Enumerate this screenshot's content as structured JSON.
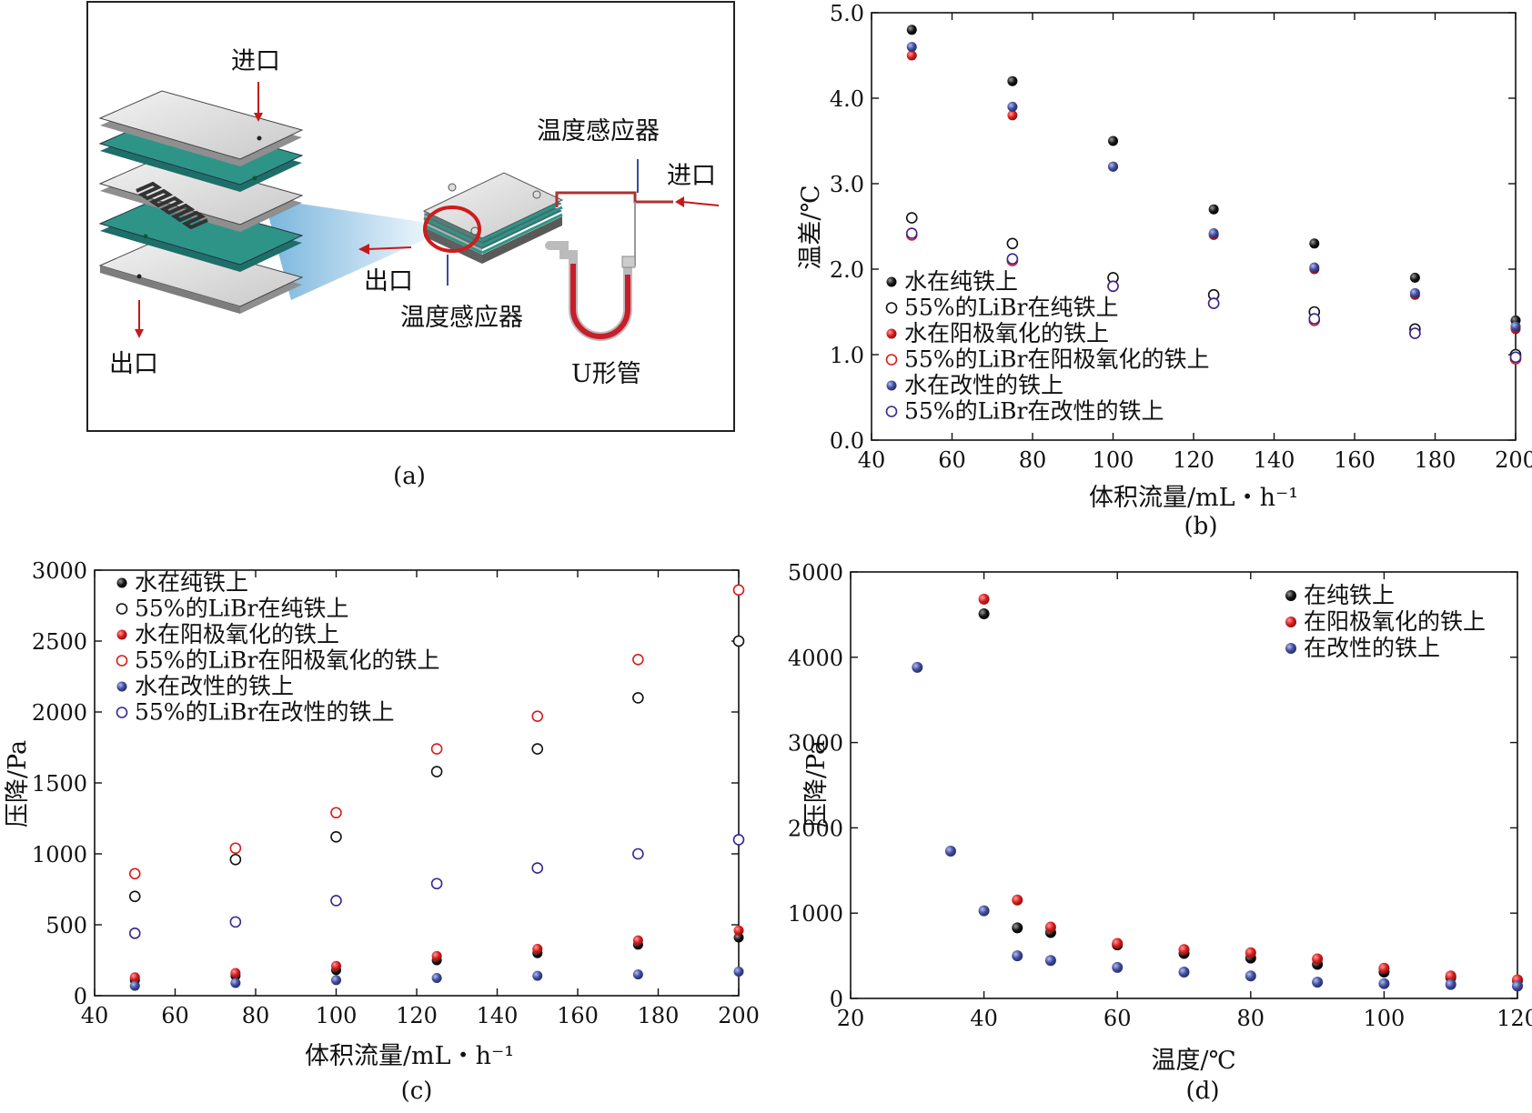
{
  "panel_a": {
    "label": "(a)",
    "inlet_top": "进口",
    "outlet_bottom": "出口",
    "sensor_top": "温度感应器",
    "inlet_right": "进口",
    "outlet_left": "出口",
    "sensor_bottom": "温度感应器",
    "u_tube": "U形管"
  },
  "chart_data": [
    {
      "id": "b",
      "type": "scatter",
      "panel_label": "(b)",
      "xlabel": "体积流量/mL・h⁻¹",
      "ylabel": "温差/℃",
      "xlim": [
        40,
        200
      ],
      "ylim": [
        0,
        5
      ],
      "xticks": [
        "40",
        "60",
        "80",
        "100",
        "120",
        "140",
        "160",
        "180",
        "200"
      ],
      "yticks": [
        "0.0",
        "1.0",
        "2.0",
        "3.0",
        "4.0",
        "5.0"
      ],
      "legend_position": "bottom-left",
      "series": [
        {
          "name": "水在纯铁上",
          "style": "filled",
          "color": "#111111",
          "x": [
            50,
            75,
            100,
            125,
            150,
            175,
            200
          ],
          "y": [
            4.8,
            4.2,
            3.5,
            2.7,
            2.3,
            1.9,
            1.4
          ]
        },
        {
          "name": "55%的LiBr在纯铁上",
          "style": "open",
          "color": "#111111",
          "x": [
            50,
            75,
            100,
            125,
            150,
            175,
            200
          ],
          "y": [
            2.6,
            2.3,
            1.9,
            1.7,
            1.5,
            1.3,
            1.0
          ]
        },
        {
          "name": "水在阳极氧化的铁上",
          "style": "filled",
          "color": "#d81c1c",
          "x": [
            50,
            75,
            100,
            125,
            150,
            175,
            200
          ],
          "y": [
            4.5,
            3.8,
            3.2,
            2.4,
            2.0,
            1.7,
            1.3
          ]
        },
        {
          "name": "55%的LiBr在阳极氧化的铁上",
          "style": "open",
          "color": "#d81c1c",
          "x": [
            50,
            75,
            100,
            125,
            150,
            175,
            200
          ],
          "y": [
            2.4,
            2.1,
            1.8,
            1.6,
            1.4,
            1.25,
            0.95
          ]
        },
        {
          "name": "水在改性的铁上",
          "style": "filled",
          "color": "#3f4c9b",
          "x": [
            50,
            75,
            100,
            125,
            150,
            175,
            200
          ],
          "y": [
            4.6,
            3.9,
            3.2,
            2.42,
            2.02,
            1.72,
            1.33
          ]
        },
        {
          "name": "55%的LiBr在改性的铁上",
          "style": "open",
          "color": "#3a2590",
          "x": [
            50,
            75,
            100,
            125,
            150,
            175,
            200
          ],
          "y": [
            2.42,
            2.12,
            1.8,
            1.6,
            1.42,
            1.25,
            0.97
          ]
        }
      ]
    },
    {
      "id": "c",
      "type": "scatter",
      "panel_label": "(c)",
      "xlabel": "体积流量/mL・h⁻¹",
      "ylabel": "压降/Pa",
      "xlim": [
        40,
        200
      ],
      "ylim": [
        0,
        3000
      ],
      "xticks": [
        "40",
        "60",
        "80",
        "100",
        "120",
        "140",
        "160",
        "180",
        "200"
      ],
      "yticks": [
        "0",
        "500",
        "1000",
        "1500",
        "2000",
        "2500",
        "3000"
      ],
      "legend_position": "top-left",
      "series": [
        {
          "name": "水在纯铁上",
          "style": "filled",
          "color": "#111111",
          "x": [
            50,
            75,
            100,
            125,
            150,
            175,
            200
          ],
          "y": [
            110,
            140,
            180,
            250,
            300,
            360,
            410
          ]
        },
        {
          "name": "55%的LiBr在纯铁上",
          "style": "open",
          "color": "#111111",
          "x": [
            50,
            75,
            100,
            125,
            150,
            175,
            200
          ],
          "y": [
            700,
            960,
            1120,
            1580,
            1740,
            2100,
            2500
          ]
        },
        {
          "name": "水在阳极氧化的铁上",
          "style": "filled",
          "color": "#d81c1c",
          "x": [
            50,
            75,
            100,
            125,
            150,
            175,
            200
          ],
          "y": [
            130,
            160,
            210,
            280,
            330,
            390,
            460
          ]
        },
        {
          "name": "55%的LiBr在阳极氧化的铁上",
          "style": "open",
          "color": "#d81c1c",
          "x": [
            50,
            75,
            100,
            125,
            150,
            175,
            200
          ],
          "y": [
            860,
            1040,
            1290,
            1740,
            1970,
            2370,
            2860
          ]
        },
        {
          "name": "水在改性的铁上",
          "style": "filled",
          "color": "#3f4c9b",
          "x": [
            50,
            75,
            100,
            125,
            150,
            175,
            200
          ],
          "y": [
            70,
            90,
            110,
            125,
            140,
            150,
            170
          ]
        },
        {
          "name": "55%的LiBr在改性的铁上",
          "style": "open",
          "color": "#3a2590",
          "x": [
            50,
            75,
            100,
            125,
            150,
            175,
            200
          ],
          "y": [
            440,
            520,
            670,
            790,
            900,
            1000,
            1100
          ]
        }
      ]
    },
    {
      "id": "d",
      "type": "scatter",
      "panel_label": "(d)",
      "xlabel": "温度/℃",
      "ylabel": "压降/Pa",
      "xlim": [
        20,
        120
      ],
      "ylim": [
        0,
        5500
      ],
      "xticks": [
        "20",
        "40",
        "60",
        "80",
        "100",
        "120"
      ],
      "yticks": [
        "0",
        "1000",
        "2000",
        "3000",
        "4000",
        "5000"
      ],
      "legend_position": "top-right",
      "series": [
        {
          "name": "在纯铁上",
          "style": "filled",
          "color": "#111111",
          "x": [
            40,
            45,
            50,
            60,
            70,
            80,
            90,
            100,
            110,
            120
          ],
          "y": [
            4960,
            910,
            850,
            690,
            580,
            520,
            440,
            340,
            270,
            230
          ]
        },
        {
          "name": "在阳极氧化的铁上",
          "style": "filled",
          "color": "#d81c1c",
          "x": [
            40,
            45,
            50,
            60,
            70,
            80,
            90,
            100,
            110,
            120
          ],
          "y": [
            5150,
            1270,
            920,
            710,
            630,
            590,
            510,
            390,
            290,
            240
          ]
        },
        {
          "name": "在改性的铁上",
          "style": "filled",
          "color": "#3f4c9b",
          "x": [
            30,
            35,
            40,
            45,
            50,
            60,
            70,
            80,
            90,
            100,
            110,
            120
          ],
          "y": [
            4270,
            1900,
            1130,
            550,
            490,
            400,
            340,
            290,
            210,
            190,
            180,
            160
          ]
        }
      ]
    }
  ]
}
